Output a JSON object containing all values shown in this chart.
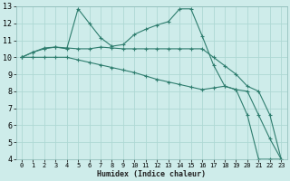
{
  "xlabel": "Humidex (Indice chaleur)",
  "bg_color": "#ceecea",
  "grid_color": "#aed8d4",
  "line_color": "#2e7d6e",
  "xlim": [
    -0.5,
    23.5
  ],
  "ylim": [
    4,
    13
  ],
  "xticks": [
    0,
    1,
    2,
    3,
    4,
    5,
    6,
    7,
    8,
    9,
    10,
    11,
    12,
    13,
    14,
    15,
    16,
    17,
    18,
    19,
    20,
    21,
    22,
    23
  ],
  "yticks": [
    4,
    5,
    6,
    7,
    8,
    9,
    10,
    11,
    12,
    13
  ],
  "line1_x": [
    0,
    1,
    2,
    3,
    4,
    5,
    6,
    7,
    8,
    9,
    10,
    11,
    12,
    13,
    14,
    15,
    16,
    17,
    18,
    19,
    20,
    21,
    22,
    23
  ],
  "line1_y": [
    10.0,
    10.3,
    10.5,
    10.6,
    10.5,
    12.85,
    12.0,
    11.15,
    10.65,
    10.75,
    11.35,
    11.65,
    11.9,
    12.1,
    12.85,
    12.85,
    11.25,
    9.55,
    8.3,
    8.1,
    6.6,
    4.0,
    4.0,
    4.0
  ],
  "line2_x": [
    0,
    1,
    2,
    3,
    4,
    5,
    6,
    7,
    8,
    9,
    10,
    11,
    12,
    13,
    14,
    15,
    16,
    17,
    18,
    19,
    20,
    21,
    22,
    23
  ],
  "line2_y": [
    10.0,
    10.3,
    10.55,
    10.6,
    10.55,
    10.5,
    10.5,
    10.6,
    10.55,
    10.5,
    10.5,
    10.5,
    10.5,
    10.5,
    10.5,
    10.5,
    10.5,
    10.0,
    9.5,
    9.0,
    8.3,
    8.0,
    6.6,
    4.0
  ],
  "line3_x": [
    0,
    1,
    2,
    3,
    4,
    5,
    6,
    7,
    8,
    9,
    10,
    11,
    12,
    13,
    14,
    15,
    16,
    17,
    18,
    19,
    20,
    21,
    22,
    23
  ],
  "line3_y": [
    10.0,
    10.0,
    10.0,
    10.0,
    10.0,
    9.85,
    9.7,
    9.55,
    9.4,
    9.25,
    9.1,
    8.9,
    8.7,
    8.55,
    8.4,
    8.25,
    8.1,
    8.2,
    8.3,
    8.1,
    8.0,
    6.6,
    5.2,
    4.0
  ]
}
